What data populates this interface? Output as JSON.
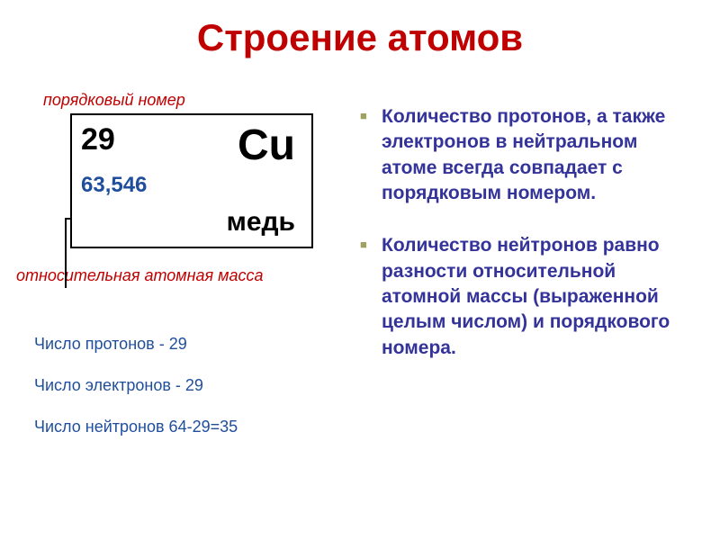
{
  "title": "Строение атомов",
  "title_color": "#c00000",
  "element": {
    "label_atomic_number": "порядковый номер",
    "label_atomic_number_color": "#c00000",
    "label_atomic_mass": "относительная атомная масса",
    "label_atomic_mass_color": "#c00000",
    "atomic_number": "29",
    "atomic_number_color": "#000000",
    "symbol": "Cu",
    "symbol_color": "#000000",
    "mass": "63,546",
    "mass_color": "#1f4e9c",
    "name": "медь",
    "name_color": "#000000"
  },
  "counts": {
    "protons": "Число протонов - 29",
    "electrons": "Число электронов - 29",
    "neutrons": "Число нейтронов  64-29=35",
    "color": "#1f4e9c"
  },
  "bullets": [
    "Количество протонов, а также электронов в нейтральном атоме всегда совпадает с порядковым номером.",
    "Количество нейтронов равно разности относительной атомной массы (выраженной целым числом) и порядкового номера."
  ],
  "bullet_color": "#343399",
  "bullet_marker_color": "#a0a060"
}
